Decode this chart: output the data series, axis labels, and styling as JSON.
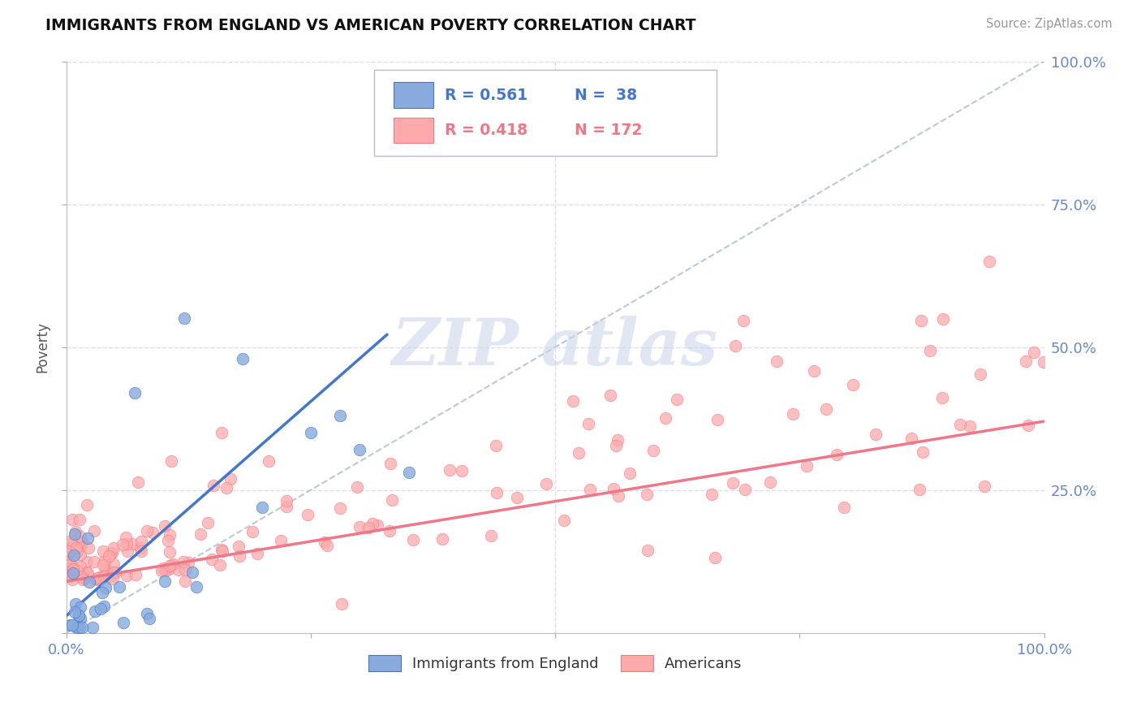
{
  "title": "IMMIGRANTS FROM ENGLAND VS AMERICAN POVERTY CORRELATION CHART",
  "source": "Source: ZipAtlas.com",
  "ylabel": "Poverty",
  "blue_color": "#88AADD",
  "pink_color": "#FFAAAA",
  "blue_line_color": "#4477CC",
  "pink_line_color": "#EE7788",
  "diag_line_color": "#AABBCC",
  "grid_color": "#DDDDEE",
  "legend_R_blue": "R = 0.561",
  "legend_N_blue": "N =  38",
  "legend_R_pink": "R = 0.418",
  "legend_N_pink": "N = 172",
  "watermark_color": "#C8D4E8",
  "tick_color": "#6688CC"
}
